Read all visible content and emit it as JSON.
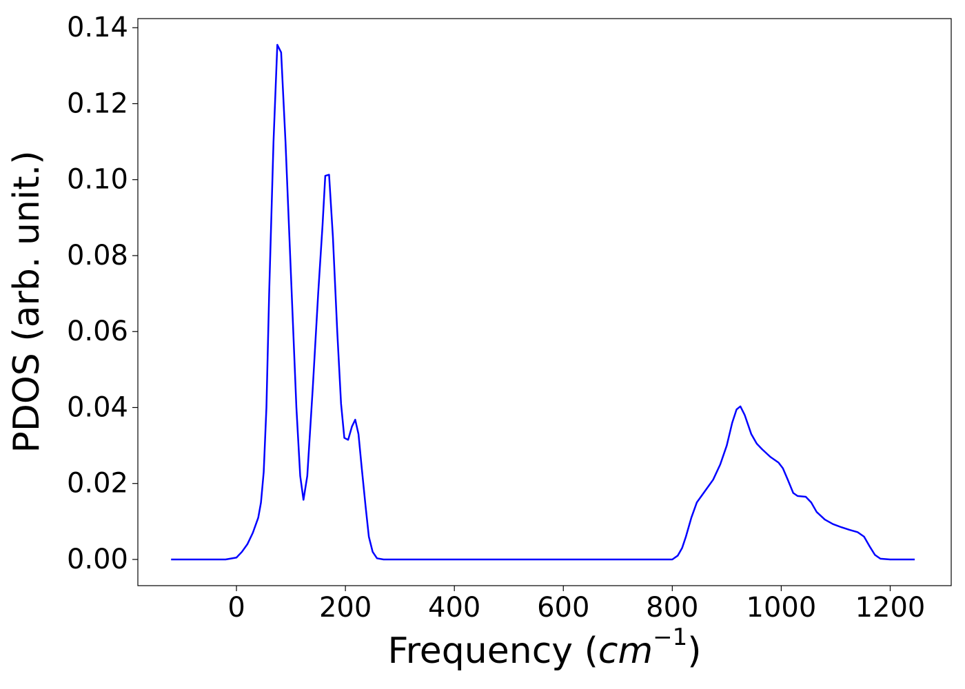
{
  "chart_data": {
    "type": "line",
    "x_label": [
      "Frequency (",
      "cm",
      "−1",
      ")"
    ],
    "y_label": "PDOS (arb. unit.)",
    "x": [
      -120,
      -20,
      0,
      10,
      20,
      30,
      40,
      45,
      50,
      55,
      60,
      68,
      75,
      82,
      90,
      100,
      110,
      117,
      123,
      130,
      140,
      150,
      158,
      163,
      170,
      177,
      185,
      192,
      198,
      205,
      212,
      218,
      224,
      230,
      237,
      243,
      250,
      258,
      270,
      800,
      810,
      818,
      825,
      835,
      845,
      860,
      875,
      888,
      900,
      910,
      918,
      925,
      933,
      945,
      955,
      965,
      980,
      995,
      1003,
      1012,
      1022,
      1030,
      1045,
      1055,
      1065,
      1080,
      1095,
      1110,
      1125,
      1140,
      1152,
      1162,
      1172,
      1182,
      1200,
      1245
    ],
    "series": [
      {
        "color": "#0000ff",
        "values": [
          0,
          0,
          0.0005,
          0.002,
          0.004,
          0.007,
          0.011,
          0.015,
          0.023,
          0.04,
          0.07,
          0.11,
          0.1355,
          0.1335,
          0.11,
          0.075,
          0.04,
          0.022,
          0.0157,
          0.022,
          0.045,
          0.07,
          0.088,
          0.101,
          0.1013,
          0.085,
          0.06,
          0.041,
          0.032,
          0.0315,
          0.035,
          0.0368,
          0.033,
          0.024,
          0.014,
          0.006,
          0.002,
          0.0003,
          0,
          0,
          0.001,
          0.003,
          0.006,
          0.011,
          0.015,
          0.018,
          0.021,
          0.025,
          0.03,
          0.036,
          0.0395,
          0.0403,
          0.038,
          0.033,
          0.0305,
          0.029,
          0.027,
          0.0255,
          0.024,
          0.021,
          0.0175,
          0.0167,
          0.0165,
          0.015,
          0.0125,
          0.0105,
          0.0093,
          0.0085,
          0.0078,
          0.0072,
          0.006,
          0.0035,
          0.0012,
          0.0002,
          0,
          0
        ]
      }
    ],
    "xlim": [
      -181,
      1312
    ],
    "ylim": [
      -0.0069,
      0.1424
    ],
    "xticks": [
      0,
      200,
      400,
      600,
      800,
      1000,
      1200
    ],
    "yticks": [
      {
        "value": 0,
        "label": "0.00"
      },
      0.02,
      0.04,
      0.06,
      0.08,
      {
        "value": 0.1,
        "label": "0.10"
      },
      0.12,
      0.14
    ],
    "grid": false
  }
}
